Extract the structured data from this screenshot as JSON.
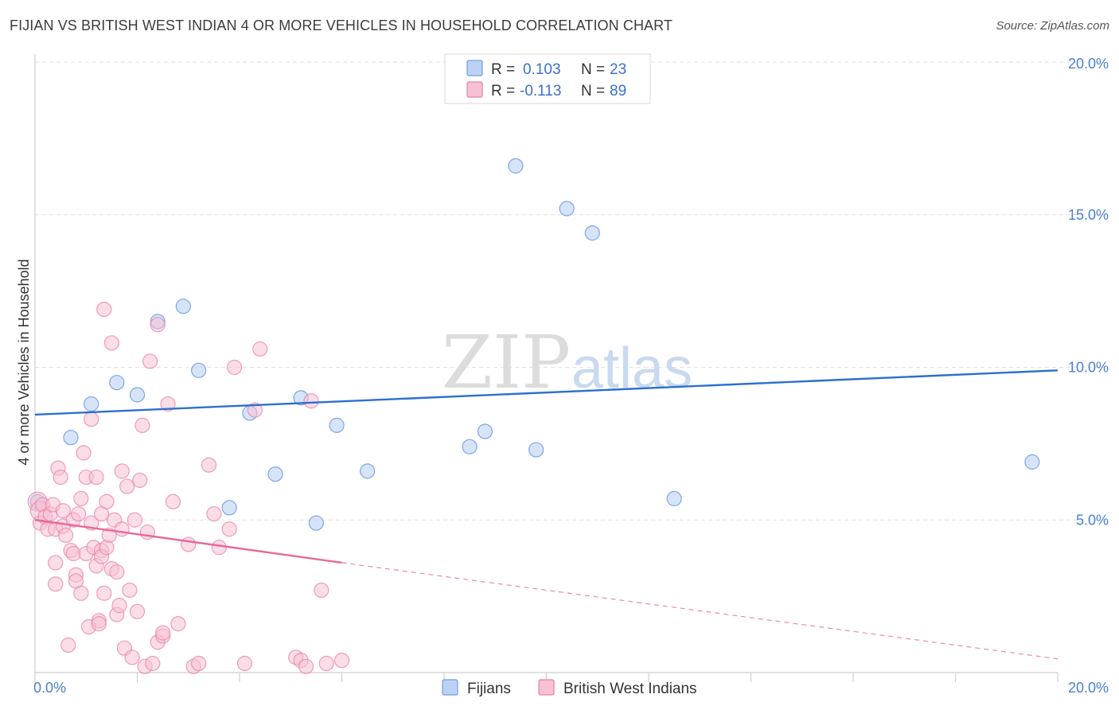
{
  "title": "FIJIAN VS BRITISH WEST INDIAN 4 OR MORE VEHICLES IN HOUSEHOLD CORRELATION CHART",
  "source": "Source: ZipAtlas.com",
  "watermark": {
    "zip": "ZIP",
    "atlas": "atlas"
  },
  "colors": {
    "fijians": "#6f9ee6",
    "fijians_fill": "#bcd2f3",
    "bwi": "#ea7fa6",
    "bwi_fill": "#f6c1d4",
    "trend_blue": "#2d6fd0",
    "trend_pink": "#e8689a",
    "tick": "#4a7fd4"
  },
  "legend": {
    "row1": {
      "r_label": "R =",
      "r_value": "0.103",
      "n_label": "N =",
      "n_value": "23"
    },
    "row2": {
      "r_label": "R =",
      "r_value": "-0.113",
      "n_label": "N =",
      "n_value": "89"
    }
  },
  "bottom_legend": [
    "Fijians",
    "British West Indians"
  ],
  "chart_data": {
    "type": "scatter",
    "title": "FIJIAN VS BRITISH WEST INDIAN 4 OR MORE VEHICLES IN HOUSEHOLD CORRELATION CHART",
    "xlabel": "",
    "ylabel": "4 or more Vehicles in Household",
    "xlim": [
      0,
      20
    ],
    "ylim": [
      0,
      20
    ],
    "x_tick_labels": [
      "0.0%",
      "20.0%"
    ],
    "y_ticks": [
      5,
      10,
      15,
      20
    ],
    "y_tick_labels": [
      "5.0%",
      "10.0%",
      "15.0%",
      "20.0%"
    ],
    "grid": true,
    "legend_position": "top-center",
    "series": [
      {
        "name": "Fijians",
        "points": [
          [
            0.05,
            5.6
          ],
          [
            0.7,
            7.7
          ],
          [
            1.1,
            8.8
          ],
          [
            1.6,
            9.5
          ],
          [
            2.0,
            9.1
          ],
          [
            2.4,
            11.5
          ],
          [
            2.9,
            12.0
          ],
          [
            3.2,
            9.9
          ],
          [
            3.8,
            5.4
          ],
          [
            4.2,
            8.5
          ],
          [
            4.7,
            6.5
          ],
          [
            5.2,
            9.0
          ],
          [
            5.5,
            4.9
          ],
          [
            5.9,
            8.1
          ],
          [
            6.5,
            6.6
          ],
          [
            8.5,
            7.4
          ],
          [
            8.8,
            7.9
          ],
          [
            9.4,
            16.6
          ],
          [
            9.8,
            7.3
          ],
          [
            10.4,
            15.2
          ],
          [
            10.9,
            14.4
          ],
          [
            12.5,
            5.7
          ],
          [
            19.5,
            6.9
          ]
        ],
        "trend": {
          "x": [
            0,
            20
          ],
          "y": [
            8.45,
            9.9
          ]
        }
      },
      {
        "name": "British West Indians",
        "points": [
          [
            0.05,
            5.6
          ],
          [
            0.1,
            5.3
          ],
          [
            0.1,
            4.9
          ],
          [
            0.15,
            5.5
          ],
          [
            0.2,
            5.1
          ],
          [
            0.25,
            4.7
          ],
          [
            0.3,
            5.2
          ],
          [
            0.35,
            5.5
          ],
          [
            0.4,
            4.7
          ],
          [
            0.4,
            3.6
          ],
          [
            0.4,
            2.9
          ],
          [
            0.45,
            6.7
          ],
          [
            0.5,
            6.4
          ],
          [
            0.55,
            5.3
          ],
          [
            0.55,
            4.8
          ],
          [
            0.6,
            4.5
          ],
          [
            0.65,
            0.9
          ],
          [
            0.7,
            4.0
          ],
          [
            0.75,
            3.9
          ],
          [
            0.75,
            5.0
          ],
          [
            0.8,
            3.2
          ],
          [
            0.8,
            3.0
          ],
          [
            0.85,
            5.2
          ],
          [
            0.9,
            2.6
          ],
          [
            0.9,
            5.7
          ],
          [
            0.95,
            7.2
          ],
          [
            1.0,
            6.4
          ],
          [
            1.0,
            3.9
          ],
          [
            1.05,
            1.5
          ],
          [
            1.1,
            8.3
          ],
          [
            1.1,
            4.9
          ],
          [
            1.15,
            4.1
          ],
          [
            1.2,
            6.4
          ],
          [
            1.2,
            3.5
          ],
          [
            1.25,
            1.7
          ],
          [
            1.25,
            1.6
          ],
          [
            1.3,
            5.2
          ],
          [
            1.3,
            4.0
          ],
          [
            1.3,
            3.8
          ],
          [
            1.35,
            2.6
          ],
          [
            1.35,
            11.9
          ],
          [
            1.4,
            5.6
          ],
          [
            1.4,
            4.1
          ],
          [
            1.45,
            4.5
          ],
          [
            1.5,
            10.8
          ],
          [
            1.5,
            3.4
          ],
          [
            1.55,
            5.0
          ],
          [
            1.6,
            3.3
          ],
          [
            1.6,
            1.9
          ],
          [
            1.65,
            2.2
          ],
          [
            1.7,
            4.7
          ],
          [
            1.7,
            6.6
          ],
          [
            1.75,
            0.8
          ],
          [
            1.8,
            6.1
          ],
          [
            1.85,
            2.7
          ],
          [
            1.9,
            0.5
          ],
          [
            1.95,
            5.0
          ],
          [
            2.0,
            2.0
          ],
          [
            2.05,
            6.3
          ],
          [
            2.1,
            8.1
          ],
          [
            2.15,
            0.2
          ],
          [
            2.2,
            4.6
          ],
          [
            2.25,
            10.2
          ],
          [
            2.3,
            0.3
          ],
          [
            2.4,
            11.4
          ],
          [
            2.4,
            1.0
          ],
          [
            2.5,
            1.2
          ],
          [
            2.5,
            1.3
          ],
          [
            2.6,
            8.8
          ],
          [
            2.7,
            5.6
          ],
          [
            2.8,
            1.6
          ],
          [
            3.0,
            4.2
          ],
          [
            3.1,
            0.2
          ],
          [
            3.2,
            0.3
          ],
          [
            3.4,
            6.8
          ],
          [
            3.5,
            5.2
          ],
          [
            3.6,
            4.1
          ],
          [
            3.8,
            4.7
          ],
          [
            3.9,
            10.0
          ],
          [
            4.1,
            0.3
          ],
          [
            4.3,
            8.6
          ],
          [
            4.4,
            10.6
          ],
          [
            5.1,
            0.5
          ],
          [
            5.2,
            0.4
          ],
          [
            5.3,
            0.2
          ],
          [
            5.4,
            8.9
          ],
          [
            5.6,
            2.7
          ],
          [
            5.7,
            0.3
          ],
          [
            6.0,
            0.4
          ]
        ],
        "trend": {
          "x": [
            0,
            6.0
          ],
          "y": [
            5.0,
            3.6
          ]
        },
        "trend_extension": {
          "x": [
            6.0,
            20
          ],
          "y": [
            3.6,
            0.45
          ]
        }
      }
    ]
  }
}
